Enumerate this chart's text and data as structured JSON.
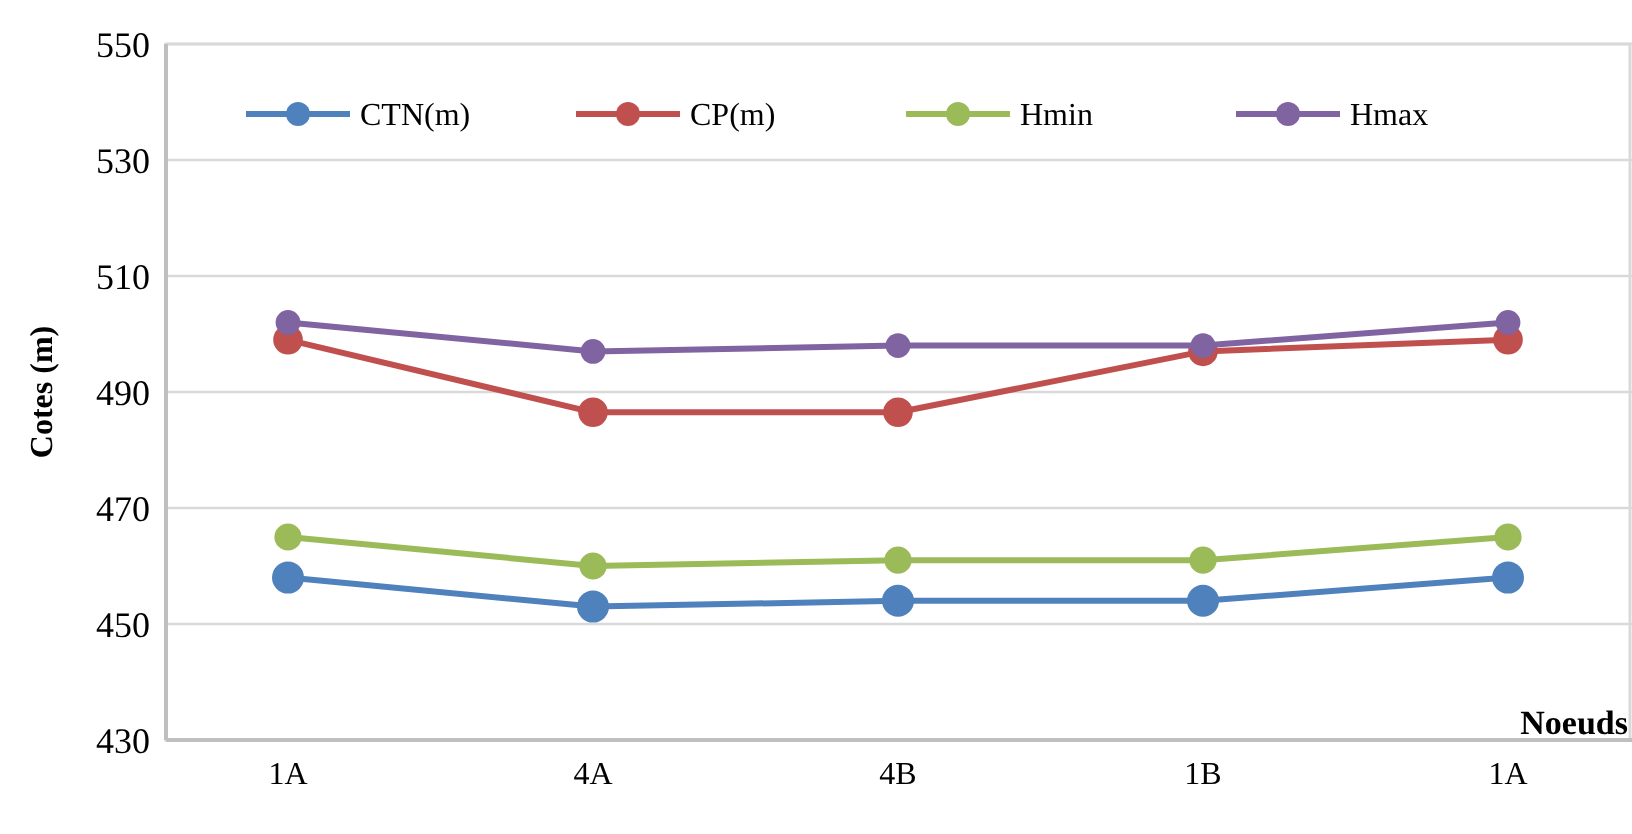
{
  "chart_data": {
    "type": "line",
    "xlabel": "Noeuds",
    "ylabel": "Cotes (m)",
    "categories": [
      "1A",
      "4A",
      "4B",
      "1B",
      "1A"
    ],
    "ylim": [
      430,
      550
    ],
    "yticks": [
      430,
      450,
      470,
      490,
      510,
      530,
      550
    ],
    "grid": "y",
    "legend": "top",
    "marker": "circle",
    "line_style": "solid",
    "series": [
      {
        "name": "CTN(m)",
        "color": "#4f81bd",
        "values": [
          458,
          453,
          454,
          454,
          458
        ]
      },
      {
        "name": "CP(m)",
        "color": "#c0504d",
        "values": [
          499,
          486.5,
          486.5,
          497,
          499
        ]
      },
      {
        "name": "Hmin",
        "color": "#9bbb59",
        "values": [
          465,
          460,
          461,
          461,
          465
        ]
      },
      {
        "name": "Hmax",
        "color": "#8064a2",
        "values": [
          502,
          497,
          498,
          498,
          502
        ]
      }
    ]
  }
}
